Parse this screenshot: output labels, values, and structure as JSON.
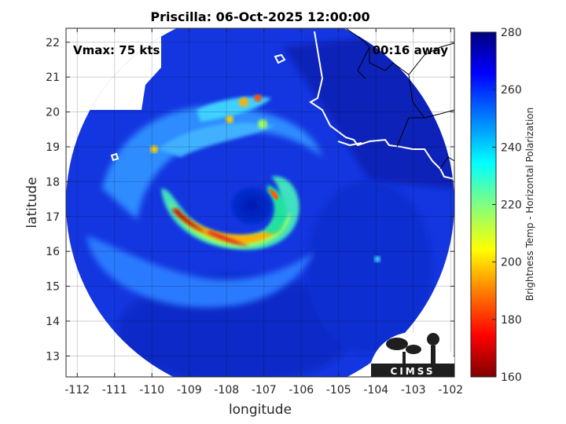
{
  "chart_data": {
    "type": "heatmap",
    "title": "Priscilla: 06-Oct-2025 12:00:00",
    "xlabel": "longitude",
    "ylabel": "latitude",
    "xlim": [
      -112.3,
      -101.9
    ],
    "ylim": [
      12.4,
      22.4
    ],
    "x_ticks": [
      -112,
      -111,
      -110,
      -109,
      -108,
      -107,
      -106,
      -105,
      -104,
      -103,
      -102
    ],
    "y_ticks": [
      13,
      14,
      15,
      16,
      17,
      18,
      19,
      20,
      21,
      22
    ],
    "grid": true,
    "annotations": {
      "vmax": "Vmax: 75 kts",
      "time_away": "00:16 away"
    },
    "storm_center": {
      "lon": -107.2,
      "lat": 17.6
    },
    "colorbar": {
      "label": "Brightness Temp - Horizontal Polarization",
      "min": 160,
      "max": 280,
      "ticks": [
        160,
        180,
        200,
        220,
        240,
        260,
        280
      ],
      "colors": [
        "#800000",
        "#ff0000",
        "#ff8000",
        "#ffff00",
        "#80ff80",
        "#00ffff",
        "#0080ff",
        "#0000ff",
        "#000080"
      ]
    },
    "logo_text": "CIMSS"
  }
}
